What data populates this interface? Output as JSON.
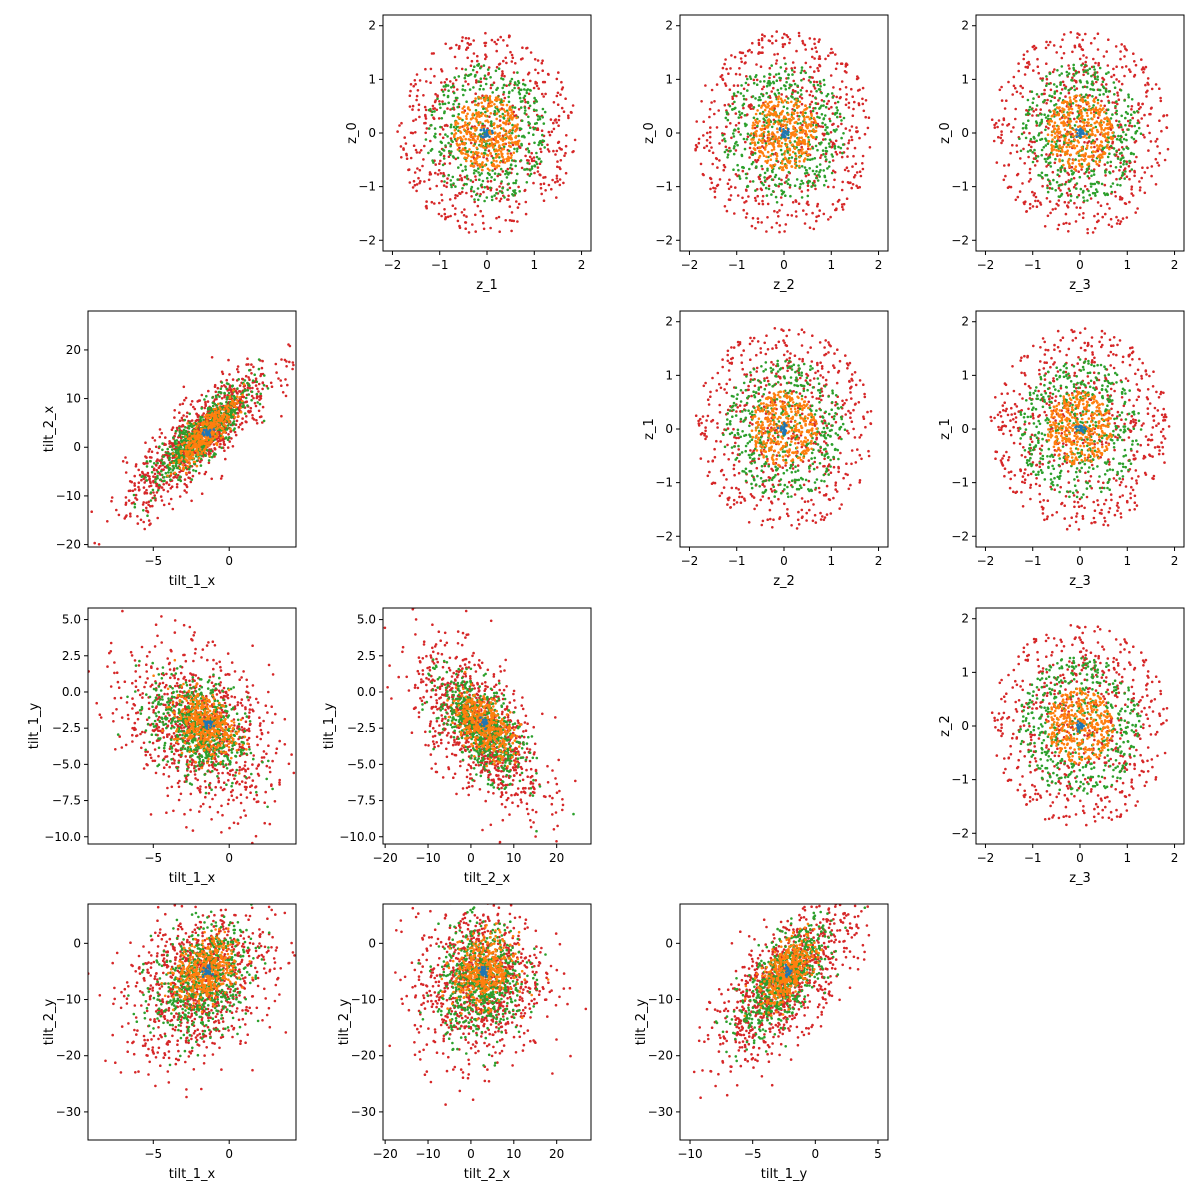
{
  "figure": {
    "series_colors": [
      "#d62728",
      "#2ca02c",
      "#ff7f0e",
      "#1f77b4"
    ],
    "marker": "dot"
  },
  "chart_data": [
    {
      "type": "scatter",
      "row": 0,
      "col": 1,
      "xlabel": "z_1",
      "ylabel": "z_0",
      "xlim": [
        -2.2,
        2.2
      ],
      "ylim": [
        -2.2,
        2.2
      ],
      "xticks": [
        -2,
        -1,
        0,
        1,
        2
      ],
      "xtick_labels": [
        "−2",
        "−1",
        "0",
        "1",
        "2"
      ],
      "yticks": [
        -2,
        -1,
        0,
        1,
        2
      ],
      "ytick_labels": [
        "−2",
        "−1",
        "0",
        "1",
        "2"
      ],
      "series": [
        {
          "color": "#d62728",
          "n": 600,
          "shape": "ring",
          "cx": 0,
          "cy": 0,
          "rx": 1.9,
          "ry": 1.9
        },
        {
          "color": "#2ca02c",
          "n": 450,
          "shape": "ring",
          "cx": 0,
          "cy": 0,
          "rx": 1.3,
          "ry": 1.3
        },
        {
          "color": "#ff7f0e",
          "n": 350,
          "shape": "ring",
          "cx": 0,
          "cy": 0,
          "rx": 0.7,
          "ry": 0.7
        },
        {
          "color": "#1f77b4",
          "n": 20,
          "shape": "gauss",
          "cx": 0,
          "cy": 0,
          "sx": 0.05,
          "sy": 0.05
        }
      ]
    },
    {
      "type": "scatter",
      "row": 0,
      "col": 2,
      "xlabel": "z_2",
      "ylabel": "z_0",
      "xlim": [
        -2.2,
        2.2
      ],
      "ylim": [
        -2.2,
        2.2
      ],
      "xticks": [
        -2,
        -1,
        0,
        1,
        2
      ],
      "xtick_labels": [
        "−2",
        "−1",
        "0",
        "1",
        "2"
      ],
      "yticks": [
        -2,
        -1,
        0,
        1,
        2
      ],
      "ytick_labels": [
        "−2",
        "−1",
        "0",
        "1",
        "2"
      ],
      "series": [
        {
          "color": "#d62728",
          "n": 600,
          "shape": "ring",
          "cx": 0,
          "cy": 0,
          "rx": 1.9,
          "ry": 1.9
        },
        {
          "color": "#2ca02c",
          "n": 450,
          "shape": "ring",
          "cx": 0,
          "cy": 0,
          "rx": 1.3,
          "ry": 1.3
        },
        {
          "color": "#ff7f0e",
          "n": 350,
          "shape": "ring",
          "cx": 0,
          "cy": 0,
          "rx": 0.7,
          "ry": 0.7
        },
        {
          "color": "#1f77b4",
          "n": 20,
          "shape": "gauss",
          "cx": 0,
          "cy": 0,
          "sx": 0.05,
          "sy": 0.05
        }
      ]
    },
    {
      "type": "scatter",
      "row": 0,
      "col": 3,
      "xlabel": "z_3",
      "ylabel": "z_0",
      "xlim": [
        -2.2,
        2.2
      ],
      "ylim": [
        -2.2,
        2.2
      ],
      "xticks": [
        -2,
        -1,
        0,
        1,
        2
      ],
      "xtick_labels": [
        "−2",
        "−1",
        "0",
        "1",
        "2"
      ],
      "yticks": [
        -2,
        -1,
        0,
        1,
        2
      ],
      "ytick_labels": [
        "−2",
        "−1",
        "0",
        "1",
        "2"
      ],
      "series": [
        {
          "color": "#d62728",
          "n": 600,
          "shape": "ring",
          "cx": 0,
          "cy": 0,
          "rx": 1.9,
          "ry": 1.9
        },
        {
          "color": "#2ca02c",
          "n": 450,
          "shape": "ring",
          "cx": 0,
          "cy": 0,
          "rx": 1.3,
          "ry": 1.3
        },
        {
          "color": "#ff7f0e",
          "n": 350,
          "shape": "ring",
          "cx": 0,
          "cy": 0,
          "rx": 0.7,
          "ry": 0.7
        },
        {
          "color": "#1f77b4",
          "n": 20,
          "shape": "gauss",
          "cx": 0,
          "cy": 0,
          "sx": 0.05,
          "sy": 0.05
        }
      ]
    },
    {
      "type": "scatter",
      "row": 1,
      "col": 0,
      "xlabel": "tilt_1_x",
      "ylabel": "tilt_2_x",
      "xlim": [
        -9.3,
        4.4
      ],
      "ylim": [
        -20.5,
        28
      ],
      "xticks": [
        -5,
        0
      ],
      "xtick_labels": [
        "−5",
        "0"
      ],
      "yticks": [
        -20,
        -10,
        0,
        10,
        20
      ],
      "ytick_labels": [
        "−20",
        "−10",
        "0",
        "10",
        "20"
      ],
      "series": [
        {
          "color": "#d62728",
          "n": 900,
          "shape": "gauss",
          "cx": -2,
          "cy": 2,
          "sx": 2.4,
          "sy": 7.5,
          "rho": 0.85
        },
        {
          "color": "#2ca02c",
          "n": 600,
          "shape": "gauss",
          "cx": -1.8,
          "cy": 2.5,
          "sx": 1.6,
          "sy": 5,
          "rho": 0.85
        },
        {
          "color": "#ff7f0e",
          "n": 400,
          "shape": "gauss",
          "cx": -1.5,
          "cy": 3,
          "sx": 1.0,
          "sy": 3.5,
          "rho": 0.85
        },
        {
          "color": "#1f77b4",
          "n": 20,
          "shape": "gauss",
          "cx": -1.5,
          "cy": 3,
          "sx": 0.2,
          "sy": 0.5
        }
      ]
    },
    {
      "type": "scatter",
      "row": 1,
      "col": 2,
      "xlabel": "z_2",
      "ylabel": "z_1",
      "xlim": [
        -2.2,
        2.2
      ],
      "ylim": [
        -2.2,
        2.2
      ],
      "xticks": [
        -2,
        -1,
        0,
        1,
        2
      ],
      "xtick_labels": [
        "−2",
        "−1",
        "0",
        "1",
        "2"
      ],
      "yticks": [
        -2,
        -1,
        0,
        1,
        2
      ],
      "ytick_labels": [
        "−2",
        "−1",
        "0",
        "1",
        "2"
      ],
      "series": [
        {
          "color": "#d62728",
          "n": 600,
          "shape": "ring",
          "cx": 0,
          "cy": 0,
          "rx": 1.9,
          "ry": 1.9
        },
        {
          "color": "#2ca02c",
          "n": 450,
          "shape": "ring",
          "cx": 0,
          "cy": 0,
          "rx": 1.3,
          "ry": 1.3
        },
        {
          "color": "#ff7f0e",
          "n": 350,
          "shape": "ring",
          "cx": 0,
          "cy": 0,
          "rx": 0.7,
          "ry": 0.7
        },
        {
          "color": "#1f77b4",
          "n": 20,
          "shape": "gauss",
          "cx": 0,
          "cy": 0,
          "sx": 0.05,
          "sy": 0.05
        }
      ]
    },
    {
      "type": "scatter",
      "row": 1,
      "col": 3,
      "xlabel": "z_3",
      "ylabel": "z_1",
      "xlim": [
        -2.2,
        2.2
      ],
      "ylim": [
        -2.2,
        2.2
      ],
      "xticks": [
        -2,
        -1,
        0,
        1,
        2
      ],
      "xtick_labels": [
        "−2",
        "−1",
        "0",
        "1",
        "2"
      ],
      "yticks": [
        -2,
        -1,
        0,
        1,
        2
      ],
      "ytick_labels": [
        "−2",
        "−1",
        "0",
        "1",
        "2"
      ],
      "series": [
        {
          "color": "#d62728",
          "n": 600,
          "shape": "ring",
          "cx": 0,
          "cy": 0,
          "rx": 1.9,
          "ry": 1.9
        },
        {
          "color": "#2ca02c",
          "n": 450,
          "shape": "ring",
          "cx": 0,
          "cy": 0,
          "rx": 1.3,
          "ry": 1.3
        },
        {
          "color": "#ff7f0e",
          "n": 350,
          "shape": "ring",
          "cx": 0,
          "cy": 0,
          "rx": 0.7,
          "ry": 0.7
        },
        {
          "color": "#1f77b4",
          "n": 20,
          "shape": "gauss",
          "cx": 0,
          "cy": 0,
          "sx": 0.05,
          "sy": 0.05
        }
      ]
    },
    {
      "type": "scatter",
      "row": 2,
      "col": 0,
      "xlabel": "tilt_1_x",
      "ylabel": "tilt_1_y",
      "xlim": [
        -9.3,
        4.4
      ],
      "ylim": [
        -10.5,
        5.8
      ],
      "xticks": [
        -5,
        0
      ],
      "xtick_labels": [
        "−5",
        "0"
      ],
      "yticks": [
        -10,
        -7.5,
        -5,
        -2.5,
        0,
        2.5,
        5
      ],
      "ytick_labels": [
        "−10.0",
        "−7.5",
        "−5.0",
        "−2.5",
        "0.0",
        "2.5",
        "5.0"
      ],
      "series": [
        {
          "color": "#d62728",
          "n": 900,
          "shape": "gauss",
          "cx": -2,
          "cy": -2.5,
          "sx": 2.4,
          "sy": 2.8,
          "rho": -0.35
        },
        {
          "color": "#2ca02c",
          "n": 600,
          "shape": "gauss",
          "cx": -2,
          "cy": -2.5,
          "sx": 1.6,
          "sy": 1.8,
          "rho": -0.35
        },
        {
          "color": "#ff7f0e",
          "n": 400,
          "shape": "gauss",
          "cx": -1.6,
          "cy": -2.2,
          "sx": 1.0,
          "sy": 1.1,
          "rho": -0.3
        },
        {
          "color": "#1f77b4",
          "n": 20,
          "shape": "gauss",
          "cx": -1.5,
          "cy": -2.2,
          "sx": 0.15,
          "sy": 0.15
        }
      ]
    },
    {
      "type": "scatter",
      "row": 2,
      "col": 1,
      "xlabel": "tilt_2_x",
      "ylabel": "tilt_1_y",
      "xlim": [
        -20.5,
        28
      ],
      "ylim": [
        -10.5,
        5.8
      ],
      "xticks": [
        -20,
        -10,
        0,
        10,
        20
      ],
      "xtick_labels": [
        "−20",
        "−10",
        "0",
        "10",
        "20"
      ],
      "yticks": [
        -10,
        -7.5,
        -5,
        -2.5,
        0,
        2.5,
        5
      ],
      "ytick_labels": [
        "−10.0",
        "−7.5",
        "−5.0",
        "−2.5",
        "0.0",
        "2.5",
        "5.0"
      ],
      "series": [
        {
          "color": "#d62728",
          "n": 900,
          "shape": "gauss",
          "cx": 2,
          "cy": -2.5,
          "sx": 7.5,
          "sy": 2.8,
          "rho": -0.6
        },
        {
          "color": "#2ca02c",
          "n": 600,
          "shape": "gauss",
          "cx": 2.5,
          "cy": -2.5,
          "sx": 5,
          "sy": 1.8,
          "rho": -0.6
        },
        {
          "color": "#ff7f0e",
          "n": 400,
          "shape": "gauss",
          "cx": 3,
          "cy": -2.2,
          "sx": 3.5,
          "sy": 1.1,
          "rho": -0.5
        },
        {
          "color": "#1f77b4",
          "n": 20,
          "shape": "gauss",
          "cx": 3,
          "cy": -2.2,
          "sx": 0.5,
          "sy": 0.15
        }
      ]
    },
    {
      "type": "scatter",
      "row": 2,
      "col": 3,
      "xlabel": "z_3",
      "ylabel": "z_2",
      "xlim": [
        -2.2,
        2.2
      ],
      "ylim": [
        -2.2,
        2.2
      ],
      "xticks": [
        -2,
        -1,
        0,
        1,
        2
      ],
      "xtick_labels": [
        "−2",
        "−1",
        "0",
        "1",
        "2"
      ],
      "yticks": [
        -2,
        -1,
        0,
        1,
        2
      ],
      "ytick_labels": [
        "−2",
        "−1",
        "0",
        "1",
        "2"
      ],
      "series": [
        {
          "color": "#d62728",
          "n": 600,
          "shape": "ring",
          "cx": 0,
          "cy": 0,
          "rx": 1.9,
          "ry": 1.9
        },
        {
          "color": "#2ca02c",
          "n": 450,
          "shape": "ring",
          "cx": 0,
          "cy": 0,
          "rx": 1.3,
          "ry": 1.3
        },
        {
          "color": "#ff7f0e",
          "n": 350,
          "shape": "ring",
          "cx": 0,
          "cy": 0,
          "rx": 0.7,
          "ry": 0.7
        },
        {
          "color": "#1f77b4",
          "n": 20,
          "shape": "gauss",
          "cx": 0,
          "cy": 0,
          "sx": 0.05,
          "sy": 0.05
        }
      ]
    },
    {
      "type": "scatter",
      "row": 3,
      "col": 0,
      "xlabel": "tilt_1_x",
      "ylabel": "tilt_2_y",
      "xlim": [
        -9.3,
        4.4
      ],
      "ylim": [
        -35,
        7
      ],
      "xticks": [
        -5,
        0
      ],
      "xtick_labels": [
        "−5",
        "0"
      ],
      "yticks": [
        -30,
        -20,
        -10,
        0
      ],
      "ytick_labels": [
        "−30",
        "−20",
        "−10",
        "0"
      ],
      "series": [
        {
          "color": "#d62728",
          "n": 900,
          "shape": "gauss",
          "cx": -2,
          "cy": -7,
          "sx": 2.4,
          "sy": 7,
          "rho": 0.3
        },
        {
          "color": "#2ca02c",
          "n": 600,
          "shape": "gauss",
          "cx": -1.8,
          "cy": -6.5,
          "sx": 1.6,
          "sy": 5,
          "rho": 0.3
        },
        {
          "color": "#ff7f0e",
          "n": 400,
          "shape": "gauss",
          "cx": -1.5,
          "cy": -5,
          "sx": 1.0,
          "sy": 3,
          "rho": 0.3
        },
        {
          "color": "#1f77b4",
          "n": 20,
          "shape": "gauss",
          "cx": -1.5,
          "cy": -5,
          "sx": 0.15,
          "sy": 0.5
        }
      ]
    },
    {
      "type": "scatter",
      "row": 3,
      "col": 1,
      "xlabel": "tilt_2_x",
      "ylabel": "tilt_2_y",
      "xlim": [
        -20.5,
        28
      ],
      "ylim": [
        -35,
        7
      ],
      "xticks": [
        -20,
        -10,
        0,
        10,
        20
      ],
      "xtick_labels": [
        "−20",
        "−10",
        "0",
        "10",
        "20"
      ],
      "yticks": [
        -30,
        -20,
        -10,
        0
      ],
      "ytick_labels": [
        "−30",
        "−20",
        "−10",
        "0"
      ],
      "series": [
        {
          "color": "#d62728",
          "n": 900,
          "shape": "gauss",
          "cx": 2,
          "cy": -7,
          "sx": 7.5,
          "sy": 7,
          "rho": 0.1
        },
        {
          "color": "#2ca02c",
          "n": 600,
          "shape": "gauss",
          "cx": 2.5,
          "cy": -6.5,
          "sx": 5,
          "sy": 5,
          "rho": 0.1
        },
        {
          "color": "#ff7f0e",
          "n": 400,
          "shape": "gauss",
          "cx": 3,
          "cy": -5,
          "sx": 3.5,
          "sy": 3,
          "rho": 0.1
        },
        {
          "color": "#1f77b4",
          "n": 20,
          "shape": "gauss",
          "cx": 3,
          "cy": -5,
          "sx": 0.5,
          "sy": 0.5
        }
      ]
    },
    {
      "type": "scatter",
      "row": 3,
      "col": 2,
      "xlabel": "tilt_1_y",
      "ylabel": "tilt_2_y",
      "xlim": [
        -10.8,
        5.8
      ],
      "ylim": [
        -35,
        7
      ],
      "xticks": [
        -10,
        -5,
        0,
        5
      ],
      "xtick_labels": [
        "−10",
        "−5",
        "0",
        "5"
      ],
      "yticks": [
        -30,
        -20,
        -10,
        0
      ],
      "ytick_labels": [
        "−30",
        "−20",
        "−10",
        "0"
      ],
      "series": [
        {
          "color": "#d62728",
          "n": 900,
          "shape": "gauss",
          "cx": -2.5,
          "cy": -7,
          "sx": 2.8,
          "sy": 7,
          "rho": 0.7
        },
        {
          "color": "#2ca02c",
          "n": 600,
          "shape": "gauss",
          "cx": -2.5,
          "cy": -6.5,
          "sx": 1.8,
          "sy": 5,
          "rho": 0.7
        },
        {
          "color": "#ff7f0e",
          "n": 400,
          "shape": "gauss",
          "cx": -2.2,
          "cy": -5,
          "sx": 1.1,
          "sy": 3,
          "rho": 0.6
        },
        {
          "color": "#1f77b4",
          "n": 20,
          "shape": "gauss",
          "cx": -2.2,
          "cy": -5,
          "sx": 0.15,
          "sy": 0.5
        }
      ]
    }
  ]
}
